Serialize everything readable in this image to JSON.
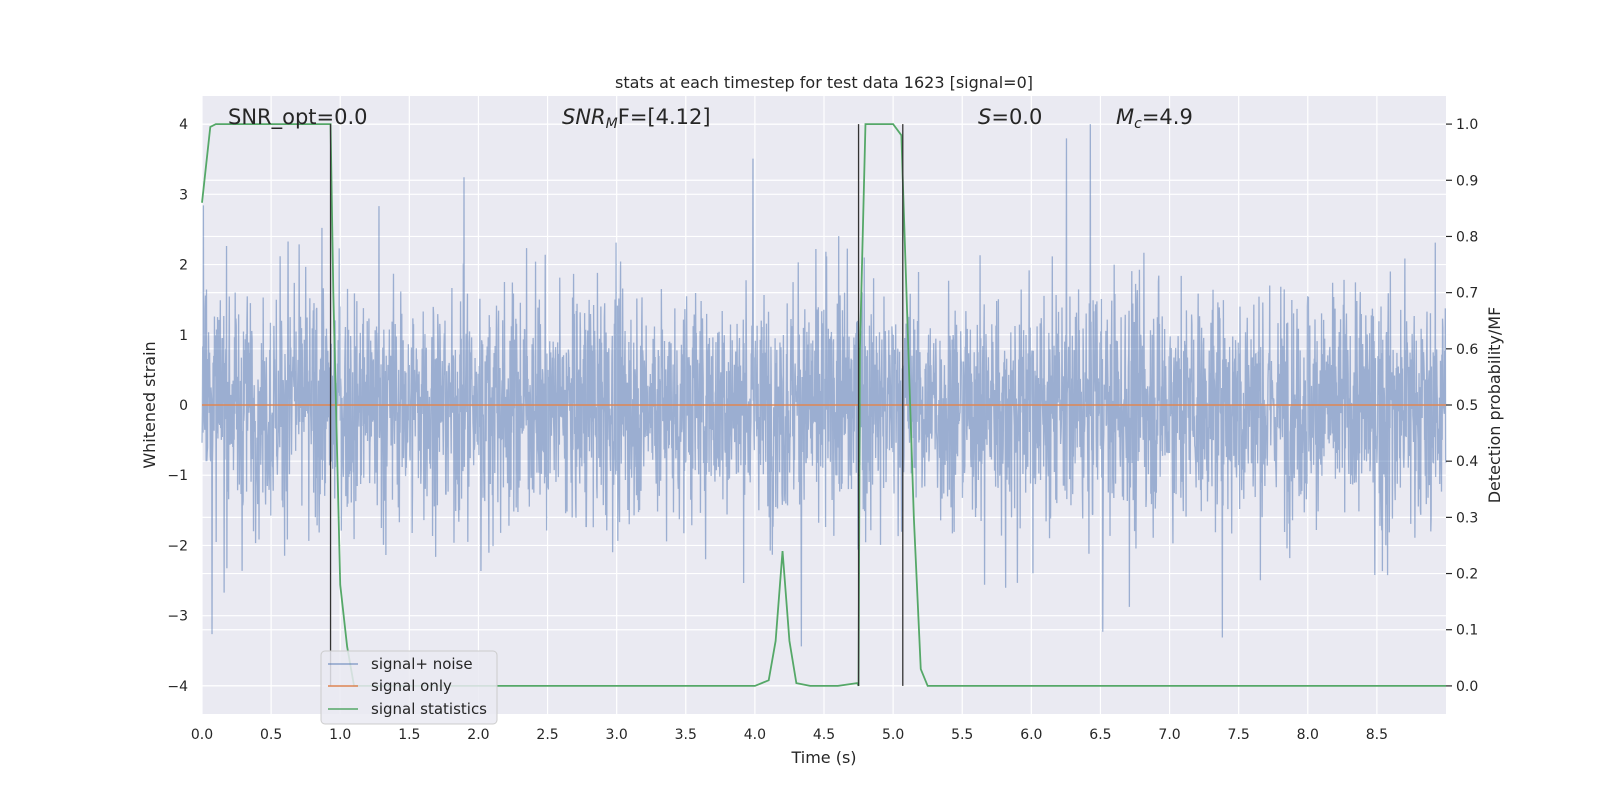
{
  "chart_data": {
    "type": "line",
    "title": "stats at each timestep for test data 1623 [signal=0]",
    "xlabel": "Time (s)",
    "ylabel": "Whitened strain",
    "y2label": "Detection probability/MF",
    "xlim": [
      0,
      9.0
    ],
    "ylim": [
      -4.4,
      4.4
    ],
    "y2lim": [
      -0.05,
      1.05
    ],
    "x_ticks": [
      "0.0",
      "0.5",
      "1.0",
      "1.5",
      "2.0",
      "2.5",
      "3.0",
      "3.5",
      "4.0",
      "4.5",
      "5.0",
      "5.5",
      "6.0",
      "6.5",
      "7.0",
      "7.5",
      "8.0",
      "8.5"
    ],
    "y_ticks": [
      "−4",
      "−3",
      "−2",
      "−1",
      "0",
      "1",
      "2",
      "3",
      "4"
    ],
    "y2_ticks": [
      "0.0",
      "0.1",
      "0.2",
      "0.3",
      "0.4",
      "0.5",
      "0.6",
      "0.7",
      "0.8",
      "0.9",
      "1.0"
    ],
    "grid": true,
    "legend_position": "lower-left",
    "annotations": {
      "snr_opt": "SNR_opt=0.0",
      "snr_mf_prefix": "SNR",
      "snr_mf_sub": "M",
      "snr_mf_suffix": "F=[4.12]",
      "s_label": "S",
      "s_value": "=0.0",
      "mc_label": "M",
      "mc_sub": "c",
      "mc_value": "=4.9"
    },
    "vertical_lines_x": [
      0.93,
      4.75,
      5.07
    ],
    "colors": {
      "background": "#eaeaf2",
      "grid": "#ffffff",
      "signal_noise": "#4c72b0",
      "signal_only": "#dd8452",
      "signal_statistics": "#55a868",
      "vline": "#333333"
    },
    "series": [
      {
        "name": "signal+ noise",
        "axis": "left",
        "kind": "noise",
        "duration": 9.0,
        "sigma": 0.8,
        "typical_max": 4.0
      },
      {
        "name": "signal only",
        "axis": "left",
        "x": [
          0,
          9.0
        ],
        "y": [
          0,
          0
        ]
      },
      {
        "name": "signal statistics",
        "axis": "right",
        "x": [
          0,
          0.06,
          0.1,
          0.15,
          0.2,
          0.5,
          0.9,
          0.93,
          0.95,
          1.0,
          1.05,
          1.1,
          2.0,
          3.0,
          4.0,
          4.1,
          4.15,
          4.2,
          4.25,
          4.3,
          4.4,
          4.6,
          4.74,
          4.75,
          4.76,
          4.8,
          4.83,
          4.87,
          5.0,
          5.06,
          5.07,
          5.15,
          5.2,
          5.25,
          5.4,
          6.0,
          7.0,
          8.0,
          9.0
        ],
        "y": [
          0.86,
          0.995,
          1.0,
          1.0,
          1.0,
          1.0,
          1.0,
          1.0,
          0.7,
          0.18,
          0.07,
          0.0,
          0.0,
          0.0,
          0.0,
          0.01,
          0.08,
          0.24,
          0.08,
          0.005,
          0.0,
          0.0,
          0.005,
          0.0,
          0.6,
          1.0,
          1.0,
          1.0,
          1.0,
          0.98,
          0.9,
          0.3,
          0.03,
          0.0,
          0.0,
          0.0,
          0.0,
          0.0,
          0.0
        ]
      }
    ]
  }
}
